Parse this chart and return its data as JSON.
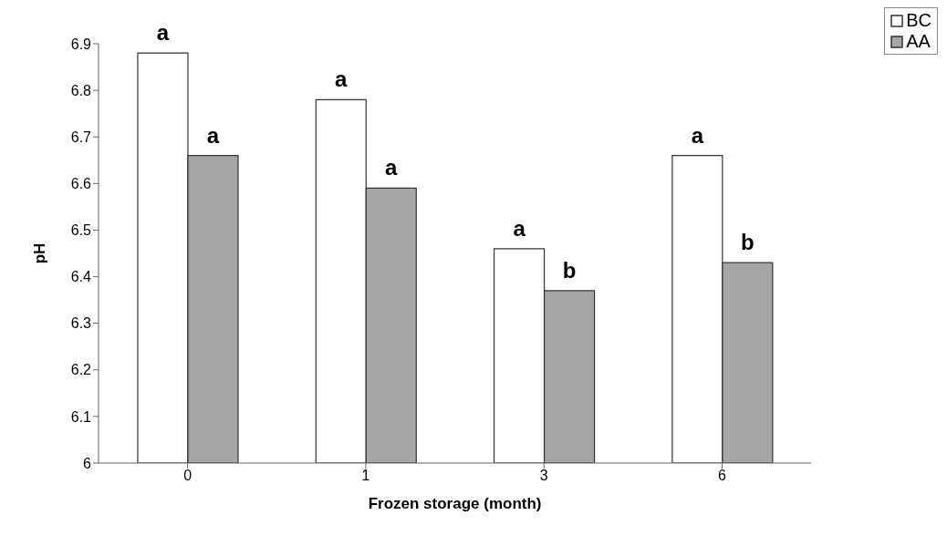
{
  "chart_data": {
    "type": "bar",
    "xlabel": "Frozen storage (month)",
    "ylabel": "pH",
    "categories": [
      "0",
      "1",
      "3",
      "6"
    ],
    "series": [
      {
        "name": "BC",
        "color": "#ffffff",
        "values": [
          6.88,
          6.78,
          6.46,
          6.66
        ]
      },
      {
        "name": "AA",
        "color": "#a6a6a6",
        "values": [
          6.66,
          6.59,
          6.37,
          6.43
        ]
      }
    ],
    "ylim": [
      6,
      6.9
    ],
    "yticks": [
      6,
      6.1,
      6.2,
      6.3,
      6.4,
      6.5,
      6.6,
      6.7,
      6.8,
      6.9
    ],
    "grid": false,
    "legend": "top right",
    "annotations": [
      {
        "text": "a",
        "x": "0",
        "y": 6.88
      },
      {
        "text": "a",
        "x": "0",
        "y": 6.66
      },
      {
        "text": "a",
        "x": "1",
        "y": 6.78
      },
      {
        "text": "a",
        "x": "1",
        "y": 6.59
      },
      {
        "text": "a",
        "x": "3",
        "y": 6.46
      },
      {
        "text": "b",
        "x": "3",
        "y": 6.37
      },
      {
        "text": "a",
        "x": "6",
        "y": 6.66
      },
      {
        "text": "b",
        "x": "6",
        "y": 6.43
      }
    ]
  }
}
